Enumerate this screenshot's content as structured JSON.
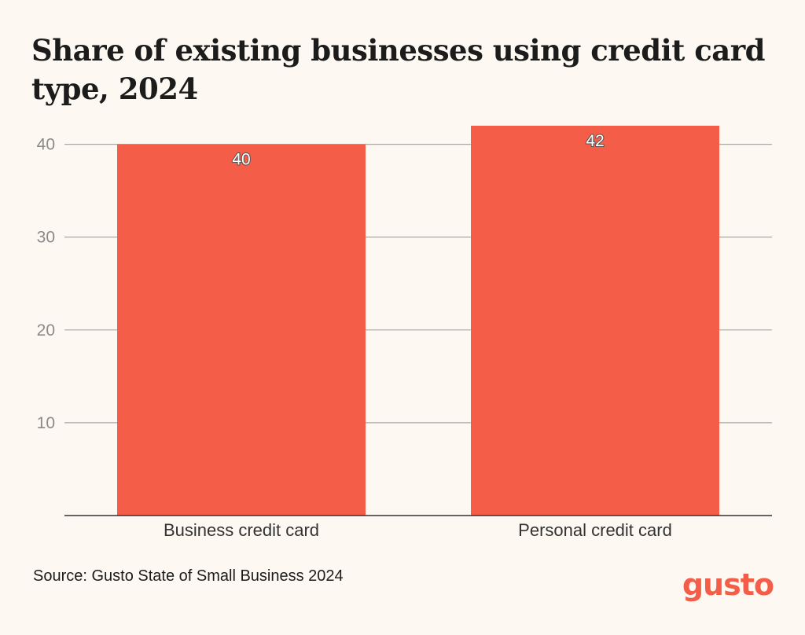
{
  "chart_data": {
    "type": "bar",
    "title": "Share of existing businesses using credit card type, 2024",
    "categories": [
      "Business credit card",
      "Personal credit card"
    ],
    "values": [
      40,
      42
    ],
    "ylim": [
      0,
      42
    ],
    "yticks": [
      10,
      20,
      30,
      40
    ],
    "ytick_labels": [
      "10",
      "20",
      "30",
      "40"
    ],
    "xlabel": "",
    "ylabel": "",
    "grid": true,
    "legend": "none",
    "bar_color": "#f45d48"
  },
  "footer": {
    "source": "Source: Gusto State of Small Business 2024",
    "logo": "gusto"
  }
}
